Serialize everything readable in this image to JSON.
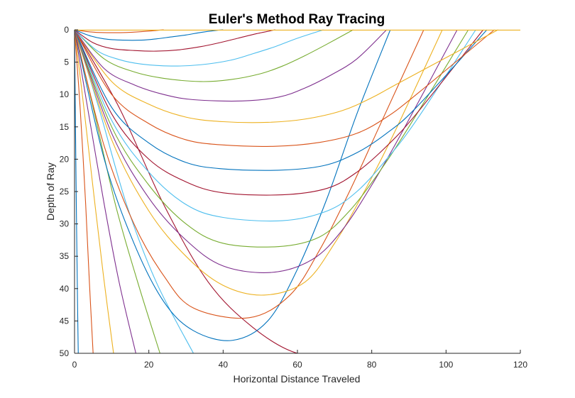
{
  "chart_data": {
    "type": "line",
    "title": "Euler's Method Ray Tracing",
    "xlabel": "Horizontal Distance Traveled",
    "ylabel": "Depth of Ray",
    "xlim": [
      0,
      120
    ],
    "ylim": [
      0,
      50
    ],
    "y_reversed": true,
    "grid": false,
    "legend": "none",
    "x_ticks": [
      0,
      20,
      40,
      60,
      80,
      100,
      120
    ],
    "y_ticks": [
      0,
      5,
      10,
      15,
      20,
      25,
      30,
      35,
      40,
      45,
      50
    ],
    "colors": [
      "#0072BD",
      "#D95319",
      "#EDB120",
      "#7E2F8E",
      "#77AC30",
      "#4DBEEE",
      "#A2142F"
    ],
    "series": [
      {
        "x": [
          0,
          0.2,
          0.5,
          0.8,
          1.0
        ],
        "y": [
          0,
          12,
          28,
          42,
          50
        ]
      },
      {
        "x": [
          0,
          1.5,
          3.0,
          4.0,
          5.0
        ],
        "y": [
          0,
          12,
          27,
          39,
          50
        ]
      },
      {
        "x": [
          0,
          2.5,
          5.5,
          8.0,
          10.5
        ],
        "y": [
          0,
          12,
          27,
          39,
          50
        ]
      },
      {
        "x": [
          0,
          3.5,
          8.0,
          12.0,
          16.5
        ],
        "y": [
          0,
          12,
          27,
          39,
          50
        ]
      },
      {
        "x": [
          0,
          5.0,
          11.0,
          17.0,
          23.0
        ],
        "y": [
          0,
          12,
          27,
          39,
          50
        ]
      },
      {
        "x": [
          0,
          6.5,
          14.0,
          22.0,
          32.0
        ],
        "y": [
          0,
          12,
          27,
          39,
          50
        ]
      },
      {
        "x": [
          0,
          12.0,
          24.0,
          36.0,
          48.0,
          60.0,
          72.0,
          84.0,
          93.0
        ],
        "y": [
          0,
          12,
          27,
          39,
          46,
          50,
          50,
          50,
          50
        ]
      },
      {
        "x": [
          0,
          8.0,
          16.0,
          24.0,
          32.0,
          42.5,
          52.0,
          60.0,
          68.0,
          76.0,
          85.0
        ],
        "y": [
          0,
          20,
          33,
          42,
          46.5,
          48,
          45,
          37,
          26,
          13,
          0
        ]
      },
      {
        "x": [
          0,
          8.0,
          16.0,
          24.0,
          32.0,
          47.0,
          58.0,
          66.0,
          74.0,
          82.0,
          94.0
        ],
        "y": [
          0,
          18,
          30,
          38,
          43,
          44.5,
          41,
          34,
          25,
          15,
          0
        ]
      },
      {
        "x": [
          0,
          10.0,
          20.0,
          30.0,
          40.0,
          51.0,
          62.0,
          70.0,
          78.0,
          86.0,
          99.0
        ],
        "y": [
          0,
          17,
          28,
          35,
          39.5,
          41,
          39,
          33,
          25,
          16,
          0
        ]
      },
      {
        "x": [
          0,
          10.0,
          20.0,
          30.0,
          40.0,
          53.0,
          64.0,
          72.0,
          80.0,
          88.0,
          103.0
        ],
        "y": [
          0,
          16,
          26,
          32.5,
          36.5,
          37.5,
          35.5,
          31,
          24,
          16,
          0
        ]
      },
      {
        "x": [
          0,
          10.0,
          20.0,
          30.0,
          40.0,
          55.0,
          66.0,
          74.0,
          82.0,
          90.0,
          106.0
        ],
        "y": [
          0,
          15,
          24,
          30,
          33,
          33.5,
          32,
          28,
          22,
          15,
          0
        ]
      },
      {
        "x": [
          0,
          10.0,
          20.0,
          30.0,
          40.0,
          56.0,
          68.0,
          76.0,
          84.0,
          92.0,
          108.0
        ],
        "y": [
          0,
          14,
          22,
          27,
          29,
          29.5,
          28,
          25,
          20,
          14,
          0
        ]
      },
      {
        "x": [
          0,
          10.0,
          20.0,
          30.0,
          40.0,
          56.0,
          68.0,
          76.0,
          84.0,
          92.0,
          110.0
        ],
        "y": [
          0,
          13,
          20,
          23.5,
          25.2,
          25.5,
          24.5,
          22,
          18,
          13,
          0
        ]
      },
      {
        "x": [
          0,
          10.0,
          20.0,
          30.0,
          40.0,
          55.0,
          67.0,
          76.0,
          84.0,
          92.0,
          111.0
        ],
        "y": [
          0,
          12,
          17.5,
          20.5,
          21.5,
          21.7,
          21,
          19,
          16,
          12,
          0
        ]
      },
      {
        "x": [
          0,
          10.0,
          20.0,
          30.0,
          40.0,
          54.0,
          66.0,
          76.0,
          84.0,
          92.0,
          113.0
        ],
        "y": [
          0,
          10,
          14.5,
          17,
          17.8,
          18,
          17.4,
          16,
          13.5,
          10,
          0
        ]
      },
      {
        "x": [
          0,
          10.0,
          20.0,
          30.0,
          40.0,
          52.0,
          62.0,
          72.0,
          80.0,
          88.0,
          114.0
        ],
        "y": [
          0,
          8,
          11.5,
          13.5,
          14.2,
          14.3,
          13.8,
          12.5,
          10.5,
          8,
          0
        ]
      },
      {
        "x": [
          0,
          8.0,
          16.0,
          24.0,
          32.0,
          45.0,
          55.0,
          62.0,
          69.0,
          76.0,
          84.0
        ],
        "y": [
          0,
          6,
          8.5,
          10,
          10.8,
          11,
          10.4,
          9,
          7,
          4.5,
          0
        ]
      },
      {
        "x": [
          0,
          8.0,
          16.0,
          24.0,
          34.0,
          42.0,
          50.0,
          56.0,
          62.0,
          68.0,
          75.0
        ],
        "y": [
          0,
          4.5,
          6.5,
          7.5,
          8,
          7.7,
          6.8,
          5.6,
          4,
          2.2,
          0
        ]
      },
      {
        "x": [
          0,
          6.0,
          12.0,
          18.0,
          26.0,
          34.0,
          42.0,
          48.0,
          54.0,
          60.0,
          67.0
        ],
        "y": [
          0,
          3.2,
          4.6,
          5.3,
          5.6,
          5.4,
          4.7,
          3.7,
          2.6,
          1.3,
          0
        ]
      },
      {
        "x": [
          0,
          5.0,
          10.0,
          16.0,
          22.0,
          28.0,
          34.0,
          39.0,
          44.0,
          49.0,
          54.0
        ],
        "y": [
          0,
          2,
          2.9,
          3.2,
          3.3,
          3.1,
          2.6,
          2,
          1.3,
          0.6,
          0
        ]
      },
      {
        "x": [
          0,
          4.0,
          8.0,
          13.0,
          18.0,
          22.0,
          26.0,
          30.0,
          34.0,
          38.0,
          40.0
        ],
        "y": [
          0,
          0.9,
          1.4,
          1.6,
          1.6,
          1.4,
          1.1,
          0.8,
          0.4,
          0.1,
          0
        ]
      },
      {
        "x": [
          0,
          3.0,
          6.0,
          10.0,
          14.0,
          17.0,
          20.0,
          22.0,
          24.0
        ],
        "y": [
          0,
          0.25,
          0.4,
          0.45,
          0.42,
          0.32,
          0.2,
          0.1,
          0
        ]
      },
      {
        "x": [
          0,
          30.0,
          60.0,
          90.0,
          120.0
        ],
        "y": [
          0.05,
          0.05,
          0.05,
          0.05,
          0.05
        ]
      }
    ]
  }
}
